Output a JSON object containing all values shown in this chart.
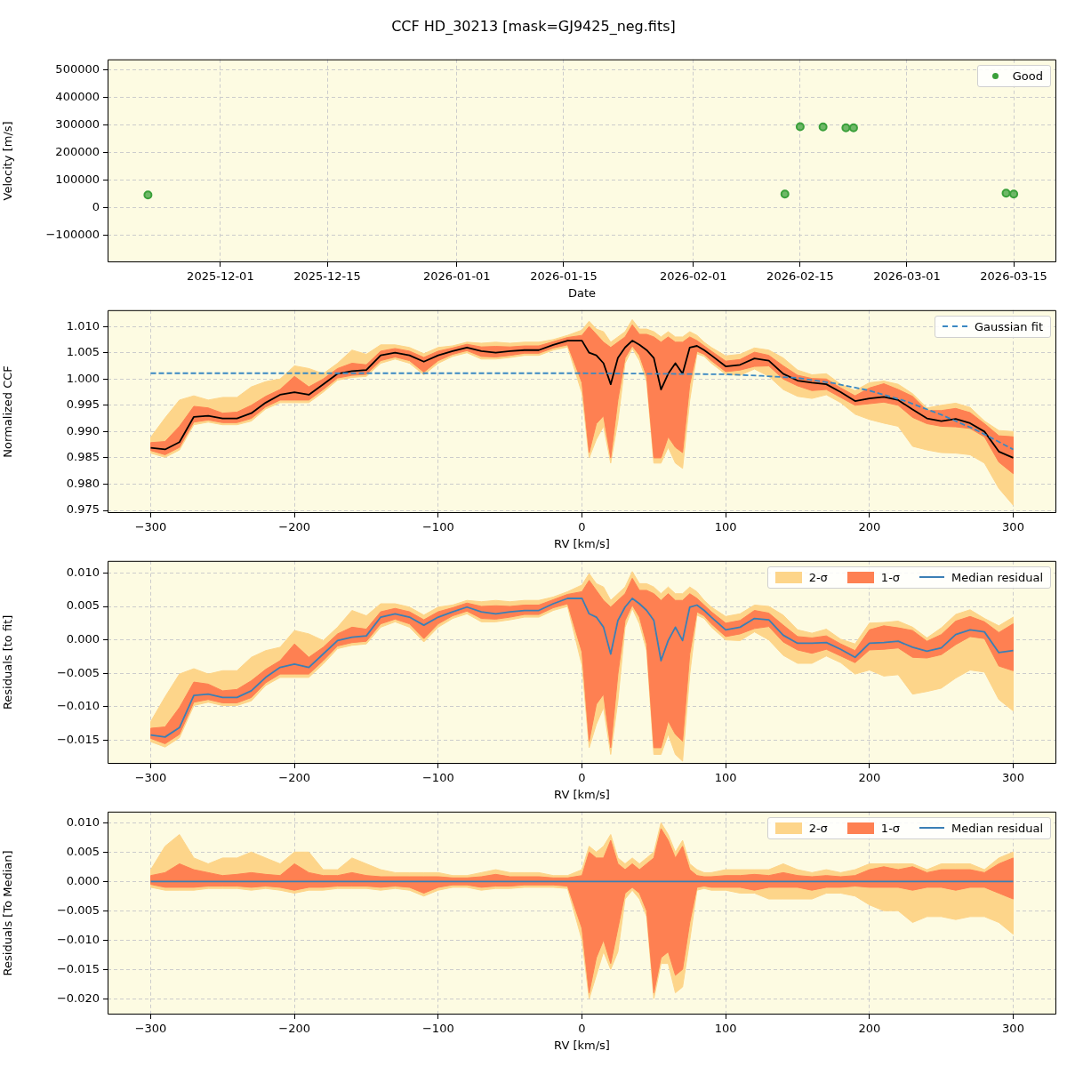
{
  "chart_data": [
    {
      "type": "scatter",
      "title": "CCF HD_30213 [mask=GJ9425_neg.fits]",
      "xlabel": "Date",
      "ylabel": "Velocity [m/s]",
      "x": [
        "2025-11-21T12:00",
        "2026-02-13",
        "2026-02-15",
        "2026-02-18",
        "2026-02-21",
        "2026-02-22",
        "2026-03-14",
        "2026-03-15"
      ],
      "series": [
        {
          "name": "Good",
          "color": "#3aa03a",
          "values": [
            47000,
            50000,
            294000,
            293000,
            290000,
            290000,
            53000,
            50000
          ]
        }
      ],
      "xlim": [
        "2025-11-16T05:00",
        "2026-03-20T14:00"
      ],
      "xticks": [
        "2025-12-01",
        "2025-12-15",
        "2026-01-01",
        "2026-01-15",
        "2026-02-01",
        "2026-02-15",
        "2026-03-01",
        "2026-03-15"
      ],
      "ylim": [
        -197000,
        537500
      ],
      "yticks": [
        {
          "value": -100000,
          "label": "−100000"
        },
        0,
        100000,
        200000,
        300000,
        400000,
        500000
      ],
      "grid": true,
      "legend": "top right",
      "marker": "circle"
    },
    {
      "type": "line",
      "xlabel": "RV [km/s]",
      "ylabel": "Normalized CCF",
      "x": [
        -300,
        -290,
        -280,
        -270,
        -260,
        -250,
        -240,
        -230,
        -220,
        -210,
        -200,
        -190,
        -180,
        -170,
        -160,
        -150,
        -140,
        -130,
        -120,
        -110,
        -100,
        -90,
        -80,
        -70,
        -60,
        -50,
        -40,
        -30,
        -20,
        -10,
        0,
        5,
        10,
        15,
        20,
        25,
        30,
        35,
        40,
        45,
        50,
        55,
        60,
        65,
        70,
        75,
        80,
        85,
        90,
        100,
        110,
        120,
        130,
        140,
        150,
        160,
        170,
        180,
        190,
        200,
        210,
        220,
        230,
        240,
        250,
        260,
        270,
        280,
        290,
        300
      ],
      "series": [
        {
          "color": "#fdd58a",
          "values": [
            null,
            null,
            null,
            null,
            null,
            null,
            null,
            null,
            null,
            null,
            null,
            null,
            null,
            null,
            null,
            null,
            null,
            null,
            null,
            null,
            null,
            null,
            null,
            null,
            null,
            null,
            null,
            null,
            null,
            null,
            null,
            null,
            null,
            null,
            null,
            null,
            null,
            null,
            null,
            null,
            null,
            null,
            null,
            null,
            null,
            null,
            null,
            null,
            null,
            null,
            null,
            null,
            null,
            null,
            null,
            null,
            null,
            null,
            null,
            null,
            null,
            null,
            null,
            null,
            null,
            null,
            null,
            null,
            null,
            null
          ],
          "upper": [
            0.9889,
            0.9926,
            0.996,
            0.9968,
            0.996,
            0.9965,
            0.9965,
            0.9985,
            0.9995,
            1.0,
            1.0025,
            1.002,
            1.001,
            1.003,
            1.0055,
            1.0047,
            1.0065,
            1.0065,
            1.006,
            1.0048,
            1.006,
            1.0063,
            1.007,
            1.0068,
            1.007,
            1.0068,
            1.007,
            1.007,
            1.0075,
            1.0083,
            1.0093,
            1.011,
            1.0095,
            1.009,
            1.007,
            1.008,
            1.009,
            1.0113,
            1.0095,
            1.0095,
            1.009,
            1.008,
            1.009,
            1.008,
            1.008,
            1.009,
            1.0083,
            1.007,
            1.006,
            1.0044,
            1.0047,
            1.0059,
            1.0055,
            1.004,
            1.0017,
            1.0008,
            1.001,
            0.999,
            0.9978,
            0.9993,
            0.9996,
            0.999,
            0.9972,
            0.9945,
            0.995,
            0.9954,
            0.9946,
            0.992,
            0.9902,
            0.99
          ],
          "lower": [
            0.9859,
            0.9851,
            0.9865,
            0.9913,
            0.9918,
            0.9913,
            0.9913,
            0.992,
            0.9943,
            0.9955,
            0.9955,
            0.9955,
            0.9975,
            0.9998,
            1.0003,
            1.0005,
            1.003,
            1.0038,
            1.003,
            1.0008,
            1.003,
            1.0043,
            1.005,
            1.0038,
            1.0038,
            1.0041,
            1.0045,
            1.0045,
            1.0055,
            1.0061,
            0.9973,
            0.985,
            0.9885,
            0.991,
            0.984,
            0.992,
            1.003,
            1.0058,
            1.0035,
            0.9995,
            0.984,
            0.984,
            0.987,
            0.984,
            0.983,
            0.996,
            1.0048,
            1.0043,
            1.003,
            1.0009,
            1.0007,
            1.0019,
            1.0005,
            0.998,
            0.9967,
            0.9963,
            0.997,
            0.9955,
            0.9933,
            0.9923,
            0.9916,
            0.991,
            0.9872,
            0.9865,
            0.986,
            0.9859,
            0.9856,
            0.984,
            0.9792,
            0.976
          ]
        },
        {
          "color": "#fe8052",
          "values": [
            null,
            null,
            null,
            null,
            null,
            null,
            null,
            null,
            null,
            null,
            null,
            null,
            null,
            null,
            null,
            null,
            null,
            null,
            null,
            null,
            null,
            null,
            null,
            null,
            null,
            null,
            null,
            null,
            null,
            null,
            null,
            null,
            null,
            null,
            null,
            null,
            null,
            null,
            null,
            null,
            null,
            null,
            null,
            null,
            null,
            null,
            null,
            null,
            null,
            null,
            null,
            null,
            null,
            null,
            null,
            null,
            null,
            null,
            null,
            null,
            null,
            null,
            null,
            null,
            null,
            null,
            null,
            null,
            null,
            null
          ],
          "upper": [
            0.9879,
            0.9881,
            0.991,
            0.9948,
            0.9945,
            0.9935,
            0.9937,
            0.995,
            0.9967,
            0.998,
            1.0005,
            0.9985,
            1.0,
            1.002,
            1.003,
            1.0027,
            1.0053,
            1.0058,
            1.0053,
            1.0041,
            1.0053,
            1.0059,
            1.0066,
            1.0061,
            1.0062,
            1.0061,
            1.0063,
            1.0063,
            1.0071,
            1.0079,
            1.0083,
            1.01,
            1.0085,
            1.007,
            1.006,
            1.007,
            1.008,
            1.0103,
            1.0085,
            1.0085,
            1.008,
            1.007,
            1.008,
            1.007,
            1.007,
            1.008,
            1.0073,
            1.0063,
            1.0053,
            1.0034,
            1.0037,
            1.0051,
            1.0045,
            1.0025,
            1.0007,
            1.0001,
            1.0,
            0.9983,
            0.9968,
            0.9983,
            0.9991,
            0.998,
            0.9967,
            0.994,
            0.994,
            0.9944,
            0.9936,
            0.9915,
            0.9892,
            0.989
          ],
          "lower": [
            0.9864,
            0.9856,
            0.987,
            0.9918,
            0.9922,
            0.9917,
            0.9917,
            0.9925,
            0.9947,
            0.996,
            0.996,
            0.996,
            0.998,
            1.0002,
            1.0007,
            1.0009,
            1.0035,
            1.0042,
            1.0035,
            1.0013,
            1.0035,
            1.0047,
            1.0054,
            1.0043,
            1.0042,
            1.0045,
            1.0049,
            1.0049,
            1.0059,
            1.0065,
            0.9993,
            0.986,
            0.9915,
            0.993,
            0.985,
            0.996,
            1.004,
            1.0063,
            1.0045,
            1.0005,
            0.985,
            0.985,
            0.989,
            0.987,
            0.986,
            0.999,
            1.0053,
            1.0047,
            1.0035,
            1.0014,
            1.0017,
            1.0024,
            1.0025,
            1.0,
            0.9987,
            0.9978,
            0.998,
            0.9965,
            0.995,
            0.9953,
            0.9956,
            0.995,
            0.9927,
            0.9915,
            0.991,
            0.9909,
            0.9906,
            0.989,
            0.9842,
            0.982
          ]
        },
        {
          "color": "#000000",
          "values": [
            0.9869,
            0.9866,
            0.988,
            0.9928,
            0.993,
            0.9925,
            0.9925,
            0.9935,
            0.9955,
            0.997,
            0.9975,
            0.997,
            0.999,
            1.001,
            1.0015,
            1.0017,
            1.0045,
            1.005,
            1.0045,
            1.0033,
            1.0045,
            1.0053,
            1.006,
            1.0053,
            1.005,
            1.0053,
            1.0055,
            1.0055,
            1.0065,
            1.0073,
            1.0073,
            1.005,
            1.0045,
            1.003,
            0.999,
            1.004,
            1.006,
            1.0073,
            1.0065,
            1.0055,
            1.004,
            0.998,
            1.001,
            1.003,
            1.001,
            1.006,
            1.0063,
            1.0055,
            1.0045,
            1.0024,
            1.0027,
            1.0039,
            1.0035,
            1.001,
            0.9997,
            0.9993,
            0.999,
            0.9975,
            0.9958,
            0.9963,
            0.9966,
            0.996,
            0.9942,
            0.9925,
            0.992,
            0.9924,
            0.9916,
            0.99,
            0.9862,
            0.985
          ]
        },
        {
          "name": "Gaussian fit",
          "color": "#3a88c2",
          "line_style": "dashed",
          "x": [
            -300,
            -200,
            -100,
            0,
            50,
            100,
            125,
            150,
            175,
            200,
            225,
            250,
            275,
            300
          ],
          "values": [
            1.0011,
            1.0011,
            1.0011,
            1.0011,
            1.001,
            1.0009,
            1.0006,
            1.0002,
            0.9992,
            0.9978,
            0.9958,
            0.9932,
            0.9902,
            0.9866
          ]
        }
      ],
      "xlim": [
        -330,
        330
      ],
      "xticks": [
        {
          "value": -300,
          "label": "−300"
        },
        {
          "value": -200,
          "label": "−200"
        },
        {
          "value": -100,
          "label": "−100"
        },
        0,
        100,
        200,
        300
      ],
      "ylim": [
        0.9745,
        1.0131
      ],
      "yticks": [
        0.975,
        {
          "value": 0.98,
          "label": "0.980"
        },
        0.985,
        {
          "value": 0.99,
          "label": "0.990"
        },
        0.995,
        {
          "value": 1,
          "label": "1.000"
        },
        1.005,
        {
          "value": 1.01,
          "label": "1.010"
        }
      ],
      "grid": true,
      "legend": "top right"
    },
    {
      "type": "line",
      "xlabel": "RV [km/s]",
      "ylabel": "Residuals [to fit]",
      "x": [
        -300,
        -290,
        -280,
        -270,
        -260,
        -250,
        -240,
        -230,
        -220,
        -210,
        -200,
        -190,
        -180,
        -170,
        -160,
        -150,
        -140,
        -130,
        -120,
        -110,
        -100,
        -90,
        -80,
        -70,
        -60,
        -50,
        -40,
        -30,
        -20,
        -10,
        0,
        5,
        10,
        15,
        20,
        25,
        30,
        35,
        40,
        45,
        50,
        55,
        60,
        65,
        70,
        75,
        80,
        85,
        90,
        100,
        110,
        120,
        130,
        140,
        150,
        160,
        170,
        180,
        190,
        200,
        210,
        220,
        230,
        240,
        250,
        260,
        270,
        280,
        290,
        300
      ],
      "series": [
        {
          "name": "2-σ",
          "color": "#fdd58a",
          "values": [
            null,
            null,
            null,
            null,
            null,
            null,
            null,
            null,
            null,
            null,
            null,
            null,
            null,
            null,
            null,
            null,
            null,
            null,
            null,
            null,
            null,
            null,
            null,
            null,
            null,
            null,
            null,
            null,
            null,
            null,
            null,
            null,
            null,
            null,
            null,
            null,
            null,
            null,
            null,
            null,
            null,
            null,
            null,
            null,
            null,
            null,
            null,
            null,
            null,
            null,
            null,
            null,
            null,
            null,
            null,
            null,
            null,
            null,
            null,
            null,
            null,
            null,
            null,
            null,
            null,
            null,
            null,
            null,
            null,
            null
          ],
          "upper": [
            -0.0122,
            -0.0085,
            -0.0051,
            -0.0043,
            -0.0051,
            -0.0046,
            -0.0046,
            -0.0026,
            -0.0016,
            -0.0011,
            0.0014,
            0.0009,
            -0.0001,
            0.0019,
            0.0044,
            0.0036,
            0.0054,
            0.0054,
            0.0049,
            0.0037,
            0.0049,
            0.0052,
            0.0059,
            0.0057,
            0.0059,
            0.0057,
            0.0059,
            0.0059,
            0.0064,
            0.0072,
            0.0082,
            0.0099,
            0.0084,
            0.0079,
            0.0059,
            0.0069,
            0.0079,
            0.0102,
            0.0084,
            0.0084,
            0.0079,
            0.0069,
            0.0079,
            0.0069,
            0.0069,
            0.0079,
            0.0072,
            0.0059,
            0.0049,
            0.0035,
            0.0039,
            0.0052,
            0.005,
            0.0037,
            0.0015,
            0.001,
            0.0016,
            0.0001,
            -0.0006,
            0.0025,
            0.0026,
            0.0028,
            0.0019,
            0.0003,
            0.0018,
            0.0038,
            0.0045,
            0.0032,
            0.0021,
            0.0034
          ],
          "lower": [
            -0.0152,
            -0.016,
            -0.0146,
            -0.0098,
            -0.0093,
            -0.0098,
            -0.0098,
            -0.0091,
            -0.0068,
            -0.0056,
            -0.0056,
            -0.0056,
            -0.0036,
            -0.0013,
            -0.0008,
            -0.0006,
            0.0019,
            0.0027,
            0.0019,
            -0.0003,
            0.0019,
            0.0032,
            0.0039,
            0.0027,
            0.0027,
            0.003,
            0.0034,
            0.0034,
            0.0044,
            0.005,
            -0.0038,
            -0.0161,
            -0.0126,
            -0.0101,
            -0.0171,
            -0.0091,
            0.0019,
            0.0047,
            0.0024,
            -0.0016,
            -0.0171,
            -0.0171,
            -0.0141,
            -0.0171,
            -0.0181,
            -0.0051,
            0.0037,
            0.0032,
            0.0019,
            0,
            -0.0001,
            0.0012,
            0,
            -0.0023,
            -0.0035,
            -0.0035,
            -0.0024,
            -0.0034,
            -0.0051,
            -0.0045,
            -0.0054,
            -0.0052,
            -0.0081,
            -0.0077,
            -0.0072,
            -0.0057,
            -0.0045,
            -0.0048,
            -0.0089,
            -0.0106
          ]
        },
        {
          "name": "1-σ",
          "color": "#fe8052",
          "values": [
            null,
            null,
            null,
            null,
            null,
            null,
            null,
            null,
            null,
            null,
            null,
            null,
            null,
            null,
            null,
            null,
            null,
            null,
            null,
            null,
            null,
            null,
            null,
            null,
            null,
            null,
            null,
            null,
            null,
            null,
            null,
            null,
            null,
            null,
            null,
            null,
            null,
            null,
            null,
            null,
            null,
            null,
            null,
            null,
            null,
            null,
            null,
            null,
            null,
            null,
            null,
            null,
            null,
            null,
            null,
            null,
            null,
            null,
            null,
            null,
            null,
            null,
            null,
            null,
            null,
            null,
            null,
            null,
            null,
            null
          ],
          "upper": [
            -0.0132,
            -0.013,
            -0.0101,
            -0.0063,
            -0.0066,
            -0.0076,
            -0.0074,
            -0.0061,
            -0.0044,
            -0.0031,
            -0.0006,
            -0.0026,
            -0.0011,
            0.0009,
            0.0019,
            0.0016,
            0.0042,
            0.0047,
            0.0042,
            0.003,
            0.0042,
            0.0048,
            0.0055,
            0.005,
            0.0051,
            0.005,
            0.0052,
            0.0052,
            0.006,
            0.0068,
            0.0072,
            0.0089,
            0.0074,
            0.0059,
            0.0049,
            0.0059,
            0.0069,
            0.0092,
            0.0074,
            0.0074,
            0.0069,
            0.0059,
            0.0069,
            0.0059,
            0.0059,
            0.0069,
            0.0062,
            0.0052,
            0.0042,
            0.0025,
            0.0029,
            0.0044,
            0.004,
            0.0022,
            0.0005,
            0.0003,
            0.0006,
            -0.0006,
            -0.0016,
            0.0015,
            0.0021,
            0.0018,
            0.0014,
            -0.0002,
            0.0008,
            0.0028,
            0.0035,
            0.0027,
            0.0011,
            0.0024
          ],
          "lower": [
            -0.0147,
            -0.0155,
            -0.0141,
            -0.0093,
            -0.0089,
            -0.0094,
            -0.0094,
            -0.0086,
            -0.0064,
            -0.0051,
            -0.0051,
            -0.0051,
            -0.0031,
            -0.0009,
            -0.0004,
            -0.0002,
            0.0024,
            0.0031,
            0.0024,
            0.0002,
            0.0024,
            0.0036,
            0.0043,
            0.0032,
            0.0031,
            0.0034,
            0.0038,
            0.0038,
            0.0048,
            0.0054,
            -0.0018,
            -0.0151,
            -0.0096,
            -0.0081,
            -0.0161,
            -0.0051,
            0.0029,
            0.0052,
            0.0034,
            -0.0006,
            -0.0161,
            -0.0161,
            -0.0121,
            -0.0141,
            -0.0151,
            -0.0021,
            0.0042,
            0.0036,
            0.0024,
            0.0005,
            0.0009,
            0.0017,
            0.002,
            -0.0003,
            -0.0015,
            -0.002,
            -0.0014,
            -0.0024,
            -0.0034,
            -0.0015,
            -0.0014,
            -0.0012,
            -0.0026,
            -0.0027,
            -0.0022,
            -0.0007,
            0.0005,
            0.0002,
            -0.0039,
            -0.0046
          ]
        },
        {
          "name": "Median residual",
          "color": "#3b7fb5",
          "values": [
            -0.0142,
            -0.0145,
            -0.0131,
            -0.0083,
            -0.0081,
            -0.0086,
            -0.0086,
            -0.0076,
            -0.0056,
            -0.0041,
            -0.0036,
            -0.0041,
            -0.0021,
            -0.0001,
            0.0004,
            0.0006,
            0.0034,
            0.0039,
            0.0034,
            0.0022,
            0.0034,
            0.0042,
            0.0049,
            0.0042,
            0.0039,
            0.0042,
            0.0044,
            0.0044,
            0.0054,
            0.0062,
            0.0062,
            0.0039,
            0.0034,
            0.0019,
            -0.0021,
            0.0029,
            0.0049,
            0.0062,
            0.0054,
            0.0044,
            0.0029,
            -0.0031,
            -0.0001,
            0.0019,
            -0.0001,
            0.0049,
            0.0052,
            0.0044,
            0.0034,
            0.0015,
            0.0019,
            0.0032,
            0.003,
            0.0007,
            -0.0005,
            -0.0005,
            -0.0004,
            -0.0014,
            -0.0026,
            -0.0005,
            -0.0004,
            -0.0002,
            -0.0011,
            -0.0017,
            -0.0012,
            0.0008,
            0.0015,
            0.0012,
            -0.0019,
            -0.0016
          ]
        }
      ],
      "xlim": [
        -330,
        330
      ],
      "xticks": [
        {
          "value": -300,
          "label": "−300"
        },
        {
          "value": -200,
          "label": "−200"
        },
        {
          "value": -100,
          "label": "−100"
        },
        0,
        100,
        200,
        300
      ],
      "ylim": [
        -0.0185,
        0.0118
      ],
      "yticks": [
        {
          "value": -0.015,
          "label": "−0.015"
        },
        {
          "value": -0.01,
          "label": "−0.010"
        },
        {
          "value": -0.005,
          "label": "−0.005"
        },
        {
          "value": 0,
          "label": "0.000"
        },
        0.005,
        {
          "value": 0.01,
          "label": "0.010"
        }
      ],
      "grid": true,
      "legend": "top right"
    },
    {
      "type": "line",
      "xlabel": "RV [km/s]",
      "ylabel": "Residuals [To Median]",
      "x": [
        -300,
        -290,
        -280,
        -270,
        -260,
        -250,
        -240,
        -230,
        -220,
        -210,
        -200,
        -190,
        -180,
        -170,
        -160,
        -150,
        -140,
        -130,
        -120,
        -110,
        -100,
        -90,
        -80,
        -70,
        -60,
        -50,
        -40,
        -30,
        -20,
        -10,
        0,
        5,
        10,
        15,
        20,
        25,
        30,
        35,
        40,
        45,
        50,
        55,
        60,
        65,
        70,
        75,
        80,
        85,
        90,
        100,
        110,
        120,
        130,
        140,
        150,
        160,
        170,
        180,
        190,
        200,
        210,
        220,
        230,
        240,
        250,
        260,
        270,
        280,
        290,
        300
      ],
      "series": [
        {
          "name": "2-σ",
          "color": "#fdd58a",
          "values": [
            null,
            null,
            null,
            null,
            null,
            null,
            null,
            null,
            null,
            null,
            null,
            null,
            null,
            null,
            null,
            null,
            null,
            null,
            null,
            null,
            null,
            null,
            null,
            null,
            null,
            null,
            null,
            null,
            null,
            null,
            null,
            null,
            null,
            null,
            null,
            null,
            null,
            null,
            null,
            null,
            null,
            null,
            null,
            null,
            null,
            null,
            null,
            null,
            null,
            null,
            null,
            null,
            null,
            null,
            null,
            null,
            null,
            null,
            null,
            null,
            null,
            null,
            null,
            null,
            null,
            null,
            null,
            null,
            null,
            null
          ],
          "upper": [
            0.002,
            0.006,
            0.008,
            0.004,
            0.003,
            0.004,
            0.004,
            0.005,
            0.004,
            0.003,
            0.005,
            0.005,
            0.002,
            0.002,
            0.004,
            0.003,
            0.002,
            0.0015,
            0.0015,
            0.0015,
            0.0015,
            0.001,
            0.001,
            0.0015,
            0.002,
            0.0015,
            0.0015,
            0.0015,
            0.001,
            0.001,
            0.002,
            0.006,
            0.005,
            0.006,
            0.008,
            0.004,
            0.003,
            0.004,
            0.003,
            0.004,
            0.005,
            0.01,
            0.008,
            0.005,
            0.007,
            0.003,
            0.002,
            0.0015,
            0.0015,
            0.002,
            0.002,
            0.002,
            0.002,
            0.003,
            0.002,
            0.0015,
            0.002,
            0.0015,
            0.002,
            0.003,
            0.003,
            0.003,
            0.003,
            0.002,
            0.003,
            0.003,
            0.003,
            0.002,
            0.004,
            0.005
          ],
          "lower": [
            -0.001,
            -0.0015,
            -0.0015,
            -0.0015,
            -0.0012,
            -0.0012,
            -0.0012,
            -0.0015,
            -0.0012,
            -0.0015,
            -0.002,
            -0.0015,
            -0.0015,
            -0.0012,
            -0.0012,
            -0.0012,
            -0.0015,
            -0.0012,
            -0.0015,
            -0.0025,
            -0.0015,
            -0.001,
            -0.001,
            -0.0015,
            -0.0012,
            -0.0012,
            -0.001,
            -0.001,
            -0.001,
            -0.0012,
            -0.01,
            -0.02,
            -0.016,
            -0.012,
            -0.015,
            -0.012,
            -0.003,
            -0.0015,
            -0.003,
            -0.006,
            -0.02,
            -0.014,
            -0.014,
            -0.019,
            -0.018,
            -0.01,
            -0.0015,
            -0.0012,
            -0.0015,
            -0.0015,
            -0.002,
            -0.002,
            -0.003,
            -0.003,
            -0.003,
            -0.003,
            -0.002,
            -0.002,
            -0.0025,
            -0.004,
            -0.005,
            -0.005,
            -0.007,
            -0.006,
            -0.006,
            -0.0065,
            -0.006,
            -0.006,
            -0.007,
            -0.009
          ]
        },
        {
          "name": "1-σ",
          "color": "#fe8052",
          "values": [
            null,
            null,
            null,
            null,
            null,
            null,
            null,
            null,
            null,
            null,
            null,
            null,
            null,
            null,
            null,
            null,
            null,
            null,
            null,
            null,
            null,
            null,
            null,
            null,
            null,
            null,
            null,
            null,
            null,
            null,
            null,
            null,
            null,
            null,
            null,
            null,
            null,
            null,
            null,
            null,
            null,
            null,
            null,
            null,
            null,
            null,
            null,
            null,
            null,
            null,
            null,
            null,
            null,
            null,
            null,
            null,
            null,
            null,
            null,
            null,
            null,
            null,
            null,
            null,
            null,
            null,
            null,
            null,
            null,
            null
          ],
          "upper": [
            0.001,
            0.0015,
            0.003,
            0.002,
            0.0015,
            0.001,
            0.0012,
            0.0015,
            0.0012,
            0.001,
            0.003,
            0.0015,
            0.001,
            0.001,
            0.0015,
            0.001,
            0.0008,
            0.0008,
            0.0008,
            0.0008,
            0.0008,
            0.0006,
            0.0006,
            0.0008,
            0.0012,
            0.0008,
            0.0008,
            0.0008,
            0.0006,
            0.0006,
            0.001,
            0.005,
            0.004,
            0.004,
            0.007,
            0.003,
            0.002,
            0.003,
            0.002,
            0.003,
            0.004,
            0.009,
            0.007,
            0.004,
            0.006,
            0.002,
            0.001,
            0.0008,
            0.0008,
            0.001,
            0.001,
            0.0012,
            0.001,
            0.0015,
            0.001,
            0.0008,
            0.001,
            0.0008,
            0.001,
            0.002,
            0.0025,
            0.002,
            0.0025,
            0.0015,
            0.002,
            0.002,
            0.002,
            0.0015,
            0.003,
            0.004
          ],
          "lower": [
            -0.0005,
            -0.001,
            -0.001,
            -0.001,
            -0.0008,
            -0.0008,
            -0.0008,
            -0.001,
            -0.0008,
            -0.001,
            -0.0015,
            -0.001,
            -0.001,
            -0.0008,
            -0.0008,
            -0.0008,
            -0.001,
            -0.0008,
            -0.001,
            -0.002,
            -0.001,
            -0.0006,
            -0.0006,
            -0.001,
            -0.0008,
            -0.0008,
            -0.0006,
            -0.0006,
            -0.0006,
            -0.0008,
            -0.008,
            -0.019,
            -0.013,
            -0.01,
            -0.014,
            -0.008,
            -0.002,
            -0.001,
            -0.002,
            -0.005,
            -0.019,
            -0.013,
            -0.012,
            -0.016,
            -0.015,
            -0.007,
            -0.001,
            -0.0008,
            -0.001,
            -0.001,
            -0.001,
            -0.0015,
            -0.001,
            -0.001,
            -0.001,
            -0.0015,
            -0.001,
            -0.001,
            -0.0008,
            -0.001,
            -0.001,
            -0.001,
            -0.0015,
            -0.001,
            -0.001,
            -0.0015,
            -0.001,
            -0.001,
            -0.002,
            -0.003
          ]
        },
        {
          "name": "Median residual",
          "color": "#3b7fb5",
          "x": [
            -300,
            300
          ],
          "values": [
            0,
            0
          ]
        }
      ],
      "xlim": [
        -330,
        330
      ],
      "xticks": [
        {
          "value": -300,
          "label": "−300"
        },
        {
          "value": -200,
          "label": "−200"
        },
        {
          "value": -100,
          "label": "−100"
        },
        0,
        100,
        200,
        300
      ],
      "ylim": [
        -0.0227,
        0.0119
      ],
      "yticks": [
        {
          "value": -0.02,
          "label": "−0.020"
        },
        {
          "value": -0.015,
          "label": "−0.015"
        },
        {
          "value": -0.01,
          "label": "−0.010"
        },
        {
          "value": -0.005,
          "label": "−0.005"
        },
        {
          "value": 0,
          "label": "0.000"
        },
        0.005,
        {
          "value": 0.01,
          "label": "0.010"
        }
      ],
      "grid": true,
      "legend": "top right"
    }
  ]
}
